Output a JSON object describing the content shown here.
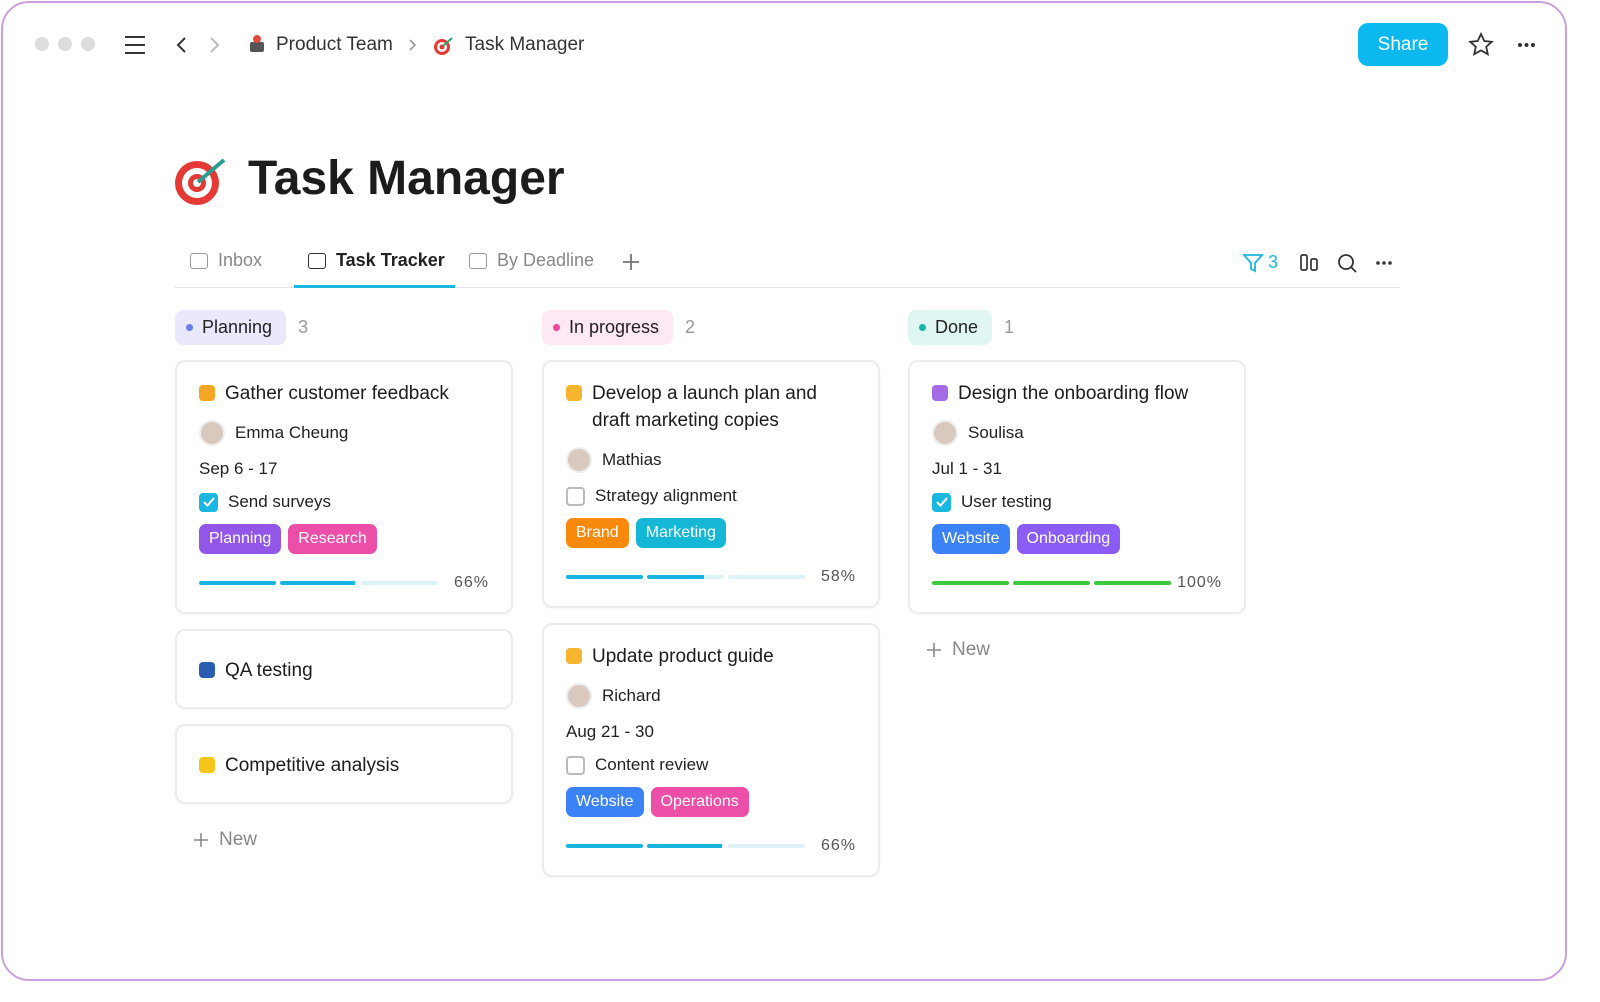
{
  "header": {
    "breadcrumb": [
      "Product Team",
      "Task Manager"
    ],
    "share": "Share"
  },
  "title": "Task Manager",
  "tabs": [
    {
      "label": "Inbox",
      "active": false
    },
    {
      "label": "Task Tracker",
      "active": true
    },
    {
      "label": "By Deadline",
      "active": false
    }
  ],
  "filter_count": "3",
  "columns": [
    {
      "name": "Planning",
      "count": "3",
      "dot": "#6b7cf0",
      "bg": "#e9e8fd",
      "new_label": "New",
      "cards": [
        {
          "title": "Gather customer feedback",
          "icon": "#f5a623",
          "assignee": "Emma Cheung",
          "dates": "Sep 6 - 17",
          "task": {
            "label": "Send surveys",
            "checked": true
          },
          "tags": [
            {
              "label": "Planning",
              "color": "#9256e8"
            },
            {
              "label": "Research",
              "color": "#ec4fa8"
            }
          ],
          "progress": {
            "value": 66,
            "label": "66%"
          },
          "progress_color": "#18b4e0"
        },
        {
          "title": "QA testing",
          "icon": "#2a5db0"
        },
        {
          "title": "Competitive analysis",
          "icon": "#f5c518"
        }
      ]
    },
    {
      "name": "In progress",
      "count": "2",
      "dot": "#ec4899",
      "bg": "#fde8f4",
      "cards": [
        {
          "title": "Develop a launch plan and draft marketing copies",
          "icon": "#f5b52e",
          "assignee": "Mathias",
          "task": {
            "label": "Strategy alignment",
            "checked": false
          },
          "tags": [
            {
              "label": "Brand",
              "color": "#f7890c"
            },
            {
              "label": "Marketing",
              "color": "#14b8d6"
            }
          ],
          "progress": {
            "value": 58,
            "label": "58%"
          },
          "progress_color": "#18b4e0"
        },
        {
          "title": "Update product guide",
          "icon": "#f5b52e",
          "assignee": "Richard",
          "dates": "Aug 21 - 30",
          "task": {
            "label": "Content review",
            "checked": false
          },
          "tags": [
            {
              "label": "Website",
              "color": "#3b82f6"
            },
            {
              "label": "Operations",
              "color": "#ec4fa8"
            }
          ],
          "progress": {
            "value": 66,
            "label": "66%"
          },
          "progress_color": "#18b4e0"
        }
      ]
    },
    {
      "name": "Done",
      "count": "1",
      "dot": "#14b8a6",
      "bg": "#dff6f2",
      "new_label": "New",
      "cards": [
        {
          "title": "Design the onboarding flow",
          "icon": "#a56be6",
          "assignee": "Soulisa",
          "dates": "Jul 1 - 31",
          "task": {
            "label": "User testing",
            "checked": true
          },
          "tags": [
            {
              "label": "Website",
              "color": "#3b82f6"
            },
            {
              "label": "Onboarding",
              "color": "#8b5cf6"
            }
          ],
          "progress": {
            "value": 100,
            "label": "100%"
          },
          "progress_color": "#3cc93c"
        }
      ]
    }
  ]
}
